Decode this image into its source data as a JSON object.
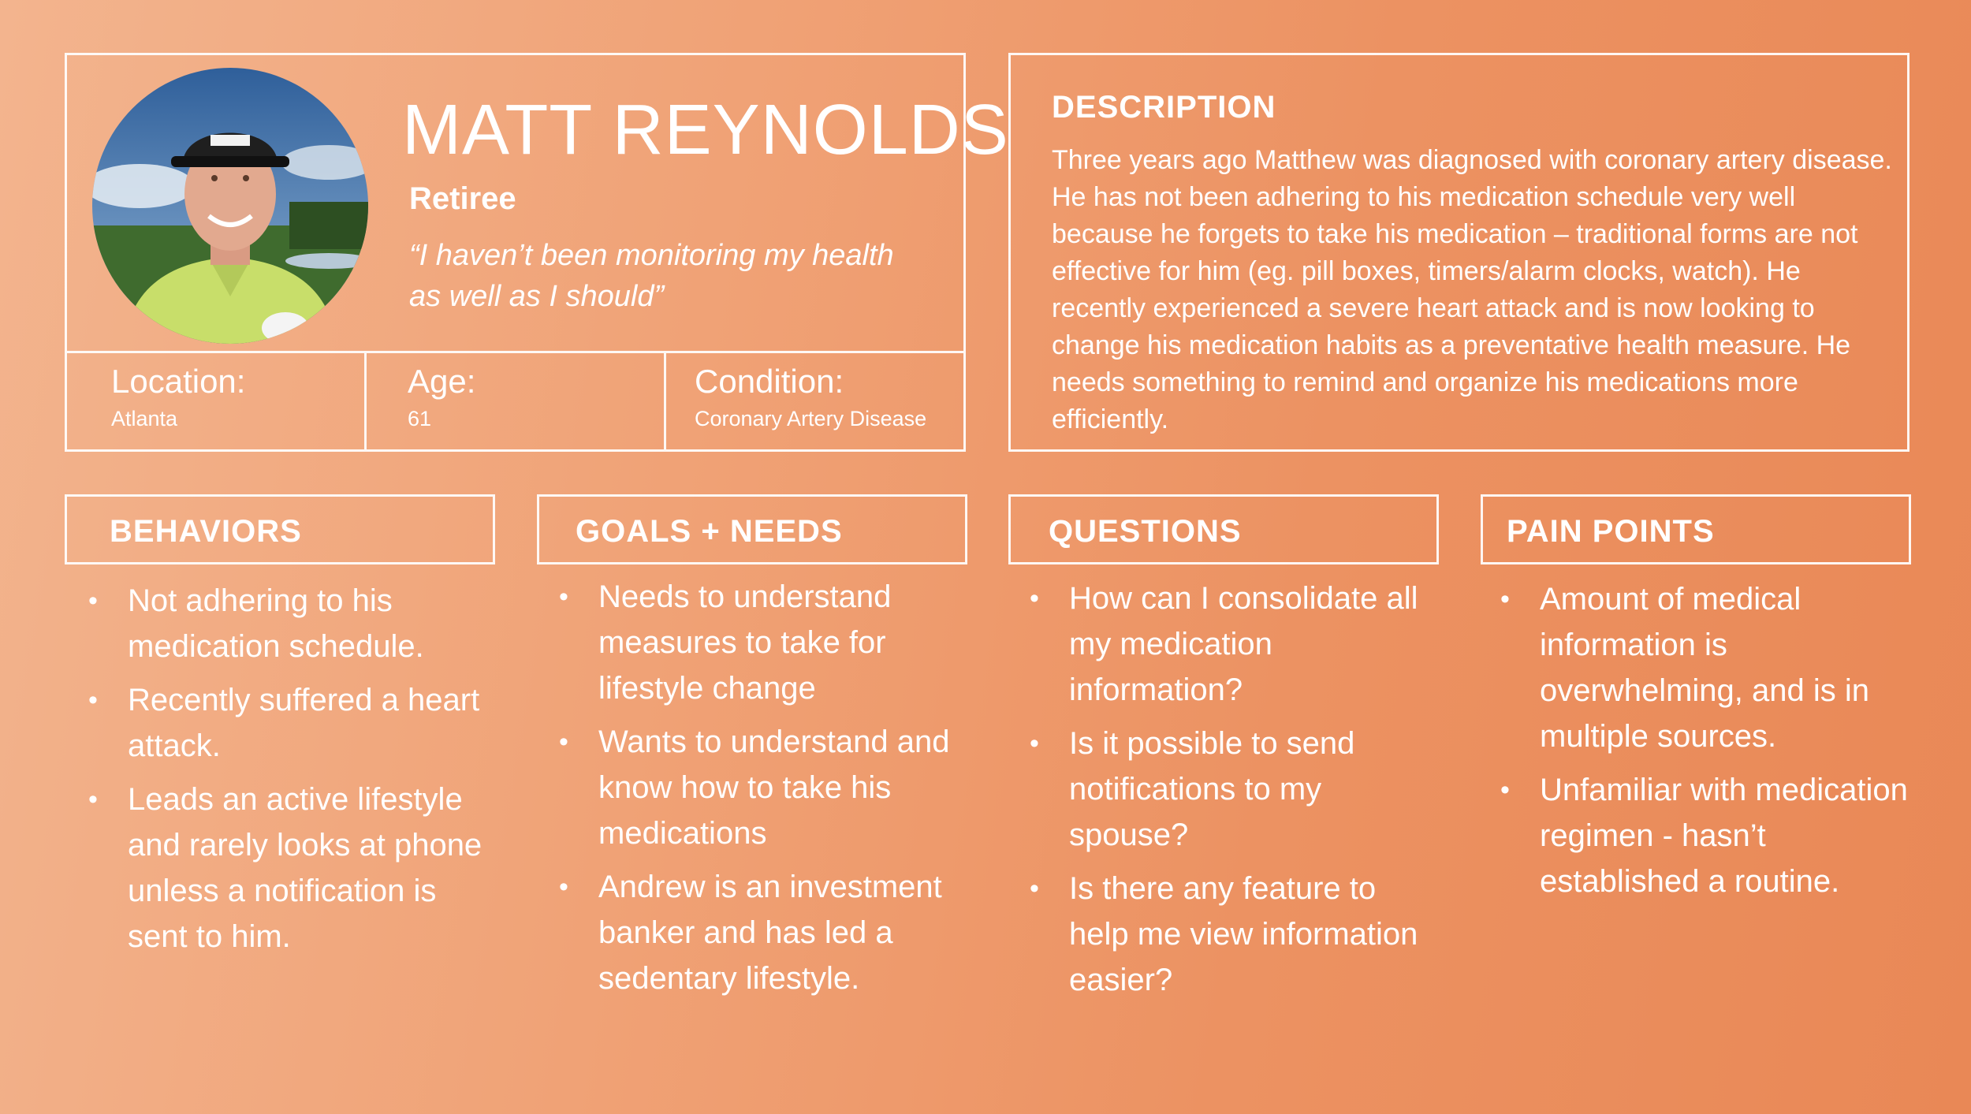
{
  "profile": {
    "name": "MATT REYNOLDS",
    "role": "Retiree",
    "quote": "“I haven’t been monitoring my health as well as I should”",
    "avatar": "portrait-photo",
    "info": [
      {
        "label": "Location:",
        "value": "Atlanta"
      },
      {
        "label": "Age:",
        "value": "61"
      },
      {
        "label": "Condition:",
        "value": "Coronary Artery Disease"
      }
    ]
  },
  "description": {
    "title": "DESCRIPTION",
    "text": "Three years ago Matthew was diagnosed with coronary artery disease. He has not been adhering to his medication schedule very well because he forgets to take his medication – traditional forms are not effective for him (eg. pill boxes, timers/alarm clocks, watch). He recently experienced a severe heart attack and is now looking to change his medication habits as a preventative health measure. He needs something to remind and organize his medications more efficiently."
  },
  "sections": {
    "behaviors": {
      "title": "BEHAVIORS",
      "items": [
        "Not adhering to his medication schedule.",
        "Recently suffered a heart attack.",
        "Leads an active lifestyle and rarely looks at phone unless a notification is sent to him."
      ]
    },
    "goals": {
      "title": "GOALS + NEEDS",
      "items": [
        "Needs to understand measures to take for lifestyle change",
        "Wants to understand and know how to take his medications",
        "Andrew is an investment banker and has led a sedentary lifestyle."
      ]
    },
    "questions": {
      "title": "QUESTIONS",
      "items": [
        "How can I consolidate all my medication information?",
        "Is it possible to send notifications to my spouse?",
        "Is there any feature to help me view information easier?"
      ]
    },
    "pain": {
      "title": "PAIN POINTS",
      "items": [
        "Amount of medical information is overwhelming, and is in multiple sources.",
        "Unfamiliar with medication regimen - hasn’t established a routine."
      ]
    }
  },
  "bullet": "•",
  "colors": {
    "background_light": "#f3b48e",
    "background_dark": "#e98856",
    "text": "#ffffff",
    "border": "#ffffff"
  }
}
